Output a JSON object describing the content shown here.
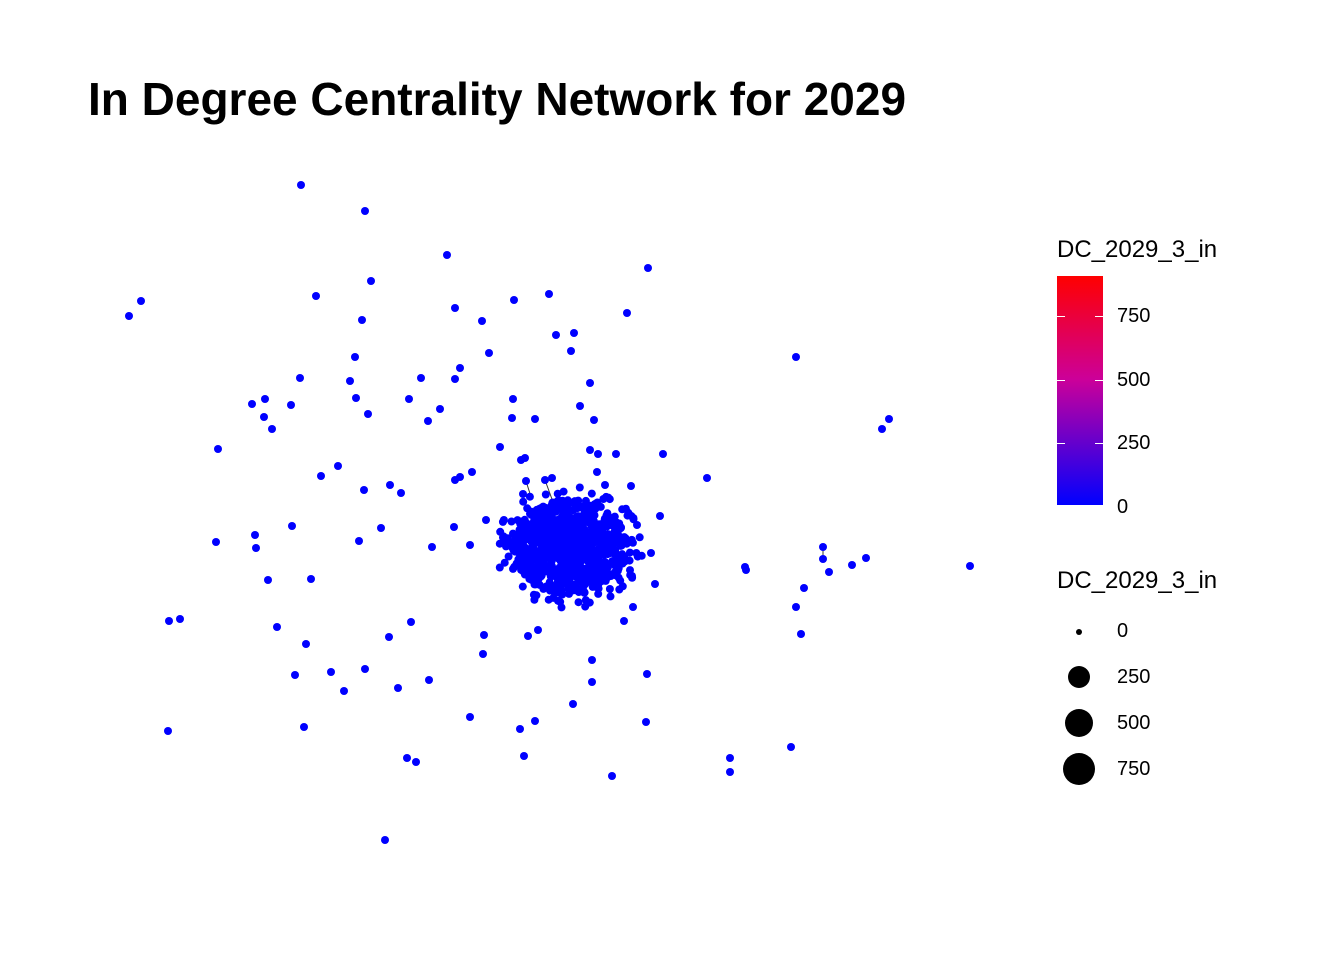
{
  "title": "In Degree Centrality Network for 2029",
  "node_color": "#0000ff",
  "legend_color": {
    "title": "DC_2029_3_in",
    "ticks": [
      "750",
      "500",
      "250",
      "0"
    ],
    "tick_values": [
      750,
      500,
      250,
      0
    ],
    "range": [
      0,
      900
    ],
    "low_color": "#0000ff",
    "high_color": "#ff0000"
  },
  "legend_size": {
    "title": "DC_2029_3_in",
    "labels": [
      "0",
      "250",
      "500",
      "750"
    ],
    "values": [
      0,
      250,
      500,
      750
    ]
  }
}
